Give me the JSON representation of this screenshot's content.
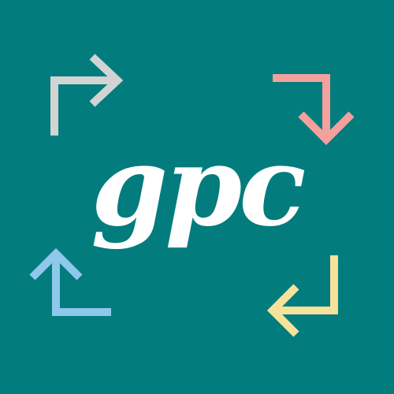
{
  "logo": {
    "text": "gpc",
    "background_color": "#037C7D",
    "text_color": "#FFFFFF"
  },
  "arrows": {
    "top_left": {
      "icon": "turn-up-right-arrow-icon",
      "color": "#D3D3D3"
    },
    "top_right": {
      "icon": "turn-right-down-arrow-icon",
      "color": "#F4A09C"
    },
    "bottom_right": {
      "icon": "turn-down-left-arrow-icon",
      "color": "#F6E29A"
    },
    "bottom_left": {
      "icon": "turn-left-up-arrow-icon",
      "color": "#8FC8EB"
    }
  }
}
